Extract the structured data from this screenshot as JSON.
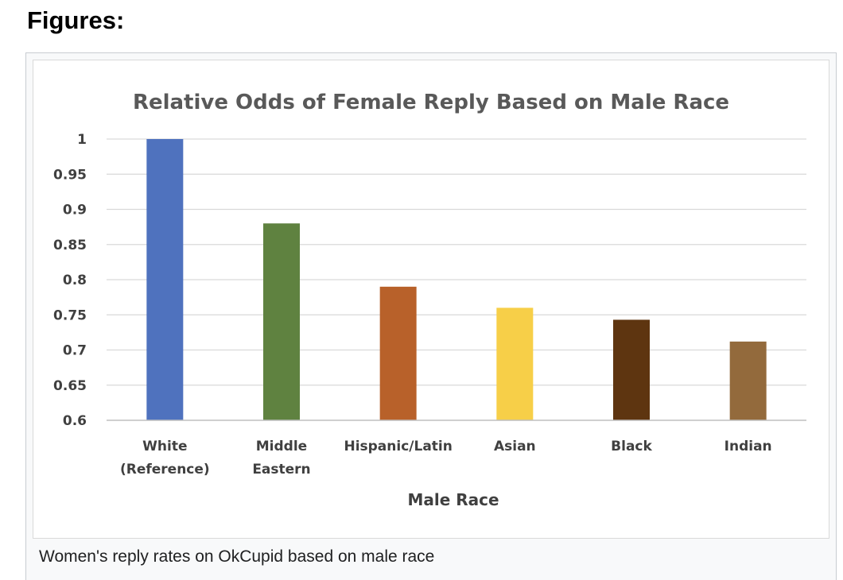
{
  "section": {
    "heading": "Figures:"
  },
  "figure": {
    "caption": "Women's reply rates on OkCupid based on male race"
  },
  "colors": {
    "gridline": "#d9d9d9",
    "axis_line": "#bfbfbf"
  },
  "chart_data": {
    "type": "bar",
    "title": "Relative Odds of Female Reply Based on Male Race",
    "xlabel": "Male Race",
    "ylabel": "",
    "ylim": [
      0.6,
      1
    ],
    "yticks": [
      "1",
      "0.95",
      "0.9",
      "0.85",
      "0.8",
      "0.75",
      "0.7",
      "0.65",
      "0.6"
    ],
    "ytick_values": [
      1,
      0.95,
      0.9,
      0.85,
      0.8,
      0.75,
      0.7,
      0.65,
      0.6
    ],
    "grid": true,
    "legend": "none",
    "categories": [
      [
        "White",
        "(Reference)"
      ],
      [
        "Middle",
        "Eastern"
      ],
      [
        "Hispanic/Latin"
      ],
      [
        "Asian"
      ],
      [
        "Black"
      ],
      [
        "Indian"
      ]
    ],
    "values": [
      1.0,
      0.88,
      0.79,
      0.76,
      0.743,
      0.712
    ],
    "bar_colors": [
      "#4f72be",
      "#5f8240",
      "#b8612a",
      "#f7cf48",
      "#5e3510",
      "#936a3c"
    ]
  }
}
